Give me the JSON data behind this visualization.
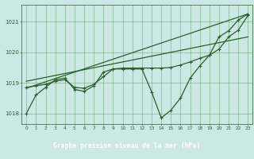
{
  "title": "Graphe pression niveau de la mer (hPa)",
  "background_color": "#cce8e4",
  "plot_bg_color": "#cce8e4",
  "label_bg_color": "#3a6e3a",
  "grid_color": "#5a9a5a",
  "line_color": "#2a5e2a",
  "xlim": [
    -0.5,
    23.5
  ],
  "ylim": [
    1017.65,
    1021.55
  ],
  "yticks": [
    1018,
    1019,
    1020,
    1021
  ],
  "xticks": [
    0,
    1,
    2,
    3,
    4,
    5,
    6,
    7,
    8,
    9,
    10,
    11,
    12,
    13,
    14,
    15,
    16,
    17,
    18,
    19,
    20,
    21,
    22,
    23
  ],
  "hours": [
    0,
    1,
    2,
    3,
    4,
    5,
    6,
    7,
    8,
    9,
    10,
    11,
    12,
    13,
    14,
    15,
    16,
    17,
    18,
    19,
    20,
    21,
    22,
    23
  ],
  "pressure_main": [
    1018.0,
    1018.6,
    1018.85,
    1019.1,
    1019.15,
    1018.78,
    1018.72,
    1018.9,
    1019.35,
    1019.45,
    1019.45,
    1019.45,
    1019.45,
    1018.7,
    1017.85,
    1018.1,
    1018.5,
    1019.15,
    1019.55,
    1019.9,
    1020.5,
    1020.7,
    1021.05,
    1021.25
  ],
  "pressure_line2": [
    1018.85,
    1018.9,
    1018.95,
    1019.05,
    1019.1,
    1018.85,
    1018.82,
    1018.95,
    1019.2,
    1019.45,
    1019.48,
    1019.48,
    1019.48,
    1019.48,
    1019.48,
    1019.5,
    1019.58,
    1019.68,
    1019.8,
    1019.9,
    1020.1,
    1020.5,
    1020.72,
    1021.2
  ],
  "trend_line1_x": [
    0,
    23
  ],
  "trend_line1_y": [
    1018.82,
    1021.25
  ],
  "trend_line2_x": [
    0,
    23
  ],
  "trend_line2_y": [
    1019.05,
    1020.5
  ]
}
